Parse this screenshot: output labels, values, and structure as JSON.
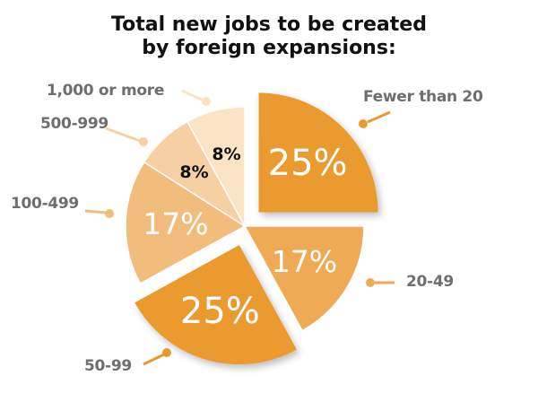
{
  "chart_data": {
    "type": "pie",
    "title": [
      "Total new jobs to be created",
      "by foreign expansions:"
    ],
    "categories": [
      "Fewer than 20",
      "20-49",
      "50-99",
      "100-499",
      "500-999",
      "1,000 or more"
    ],
    "values": [
      25,
      17,
      25,
      17,
      8,
      8
    ],
    "value_labels": [
      "25%",
      "17%",
      "25%",
      "17%",
      "8%",
      "8%"
    ],
    "exploded": [
      true,
      false,
      true,
      false,
      false,
      false
    ],
    "colors": [
      "#EA9A2D",
      "#EEAA55",
      "#EA9A2D",
      "#F2BC7C",
      "#F6D0A2",
      "#FBE3C6"
    ],
    "value_label_colors": [
      "#ffffff",
      "#ffffff",
      "#ffffff",
      "#ffffff",
      "#111111",
      "#111111"
    ],
    "start_angle": "12 o'clock",
    "direction": "clockwise",
    "legend": "none (callout labels)"
  }
}
